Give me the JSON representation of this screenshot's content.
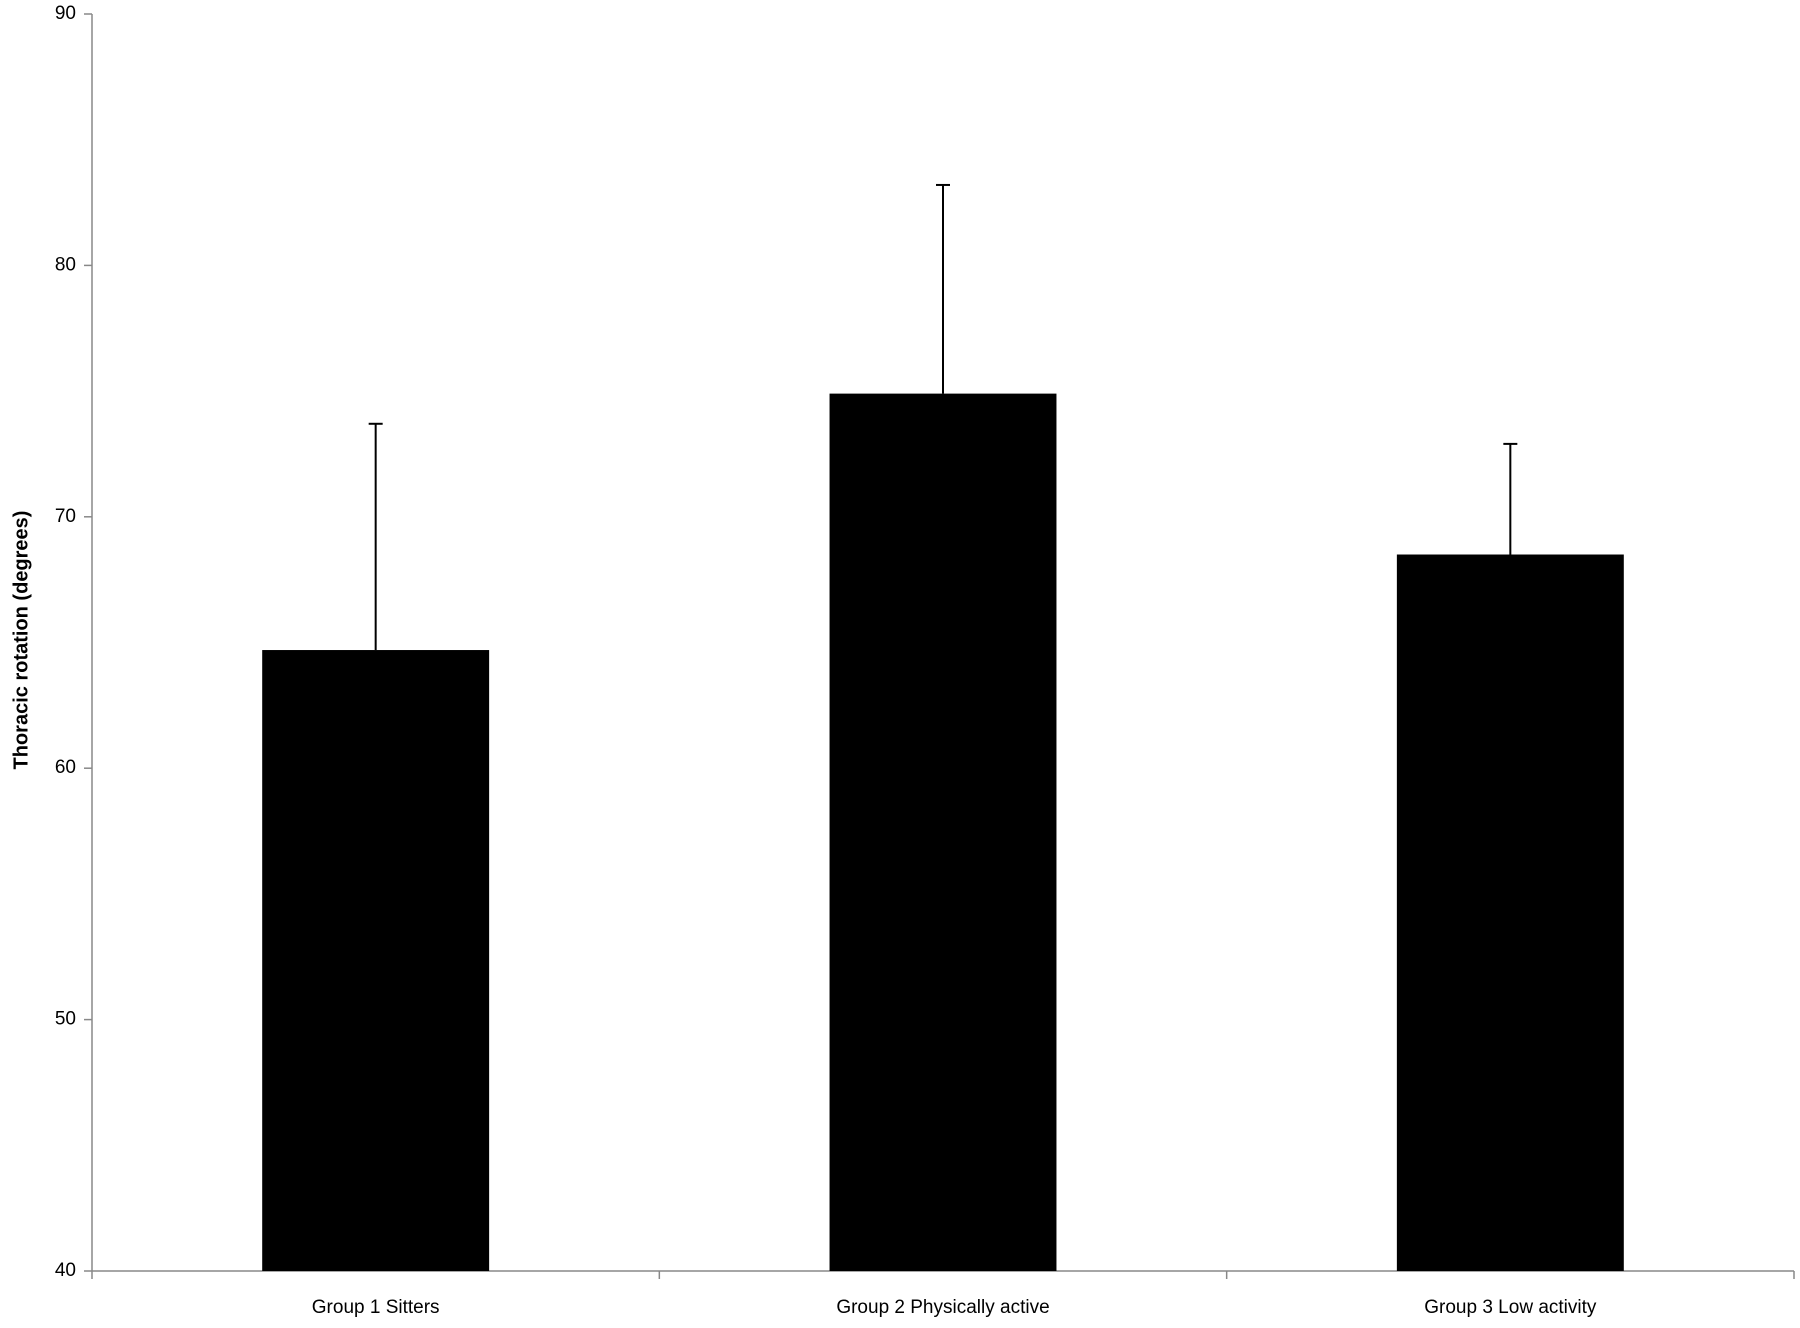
{
  "chart_data": {
    "type": "bar",
    "y_label": "Thoracic rotation (degrees)",
    "categories": [
      "Group 1 Sitters",
      "Group 2 Physically active",
      "Group 3 Low activity"
    ],
    "values": [
      64.7,
      74.9,
      68.5
    ],
    "errors": [
      9.0,
      8.3,
      4.4
    ],
    "color": "#000000",
    "ylim": [
      40,
      90
    ],
    "yticks": [
      40,
      50,
      60,
      70,
      80,
      90
    ],
    "grid": false
  }
}
